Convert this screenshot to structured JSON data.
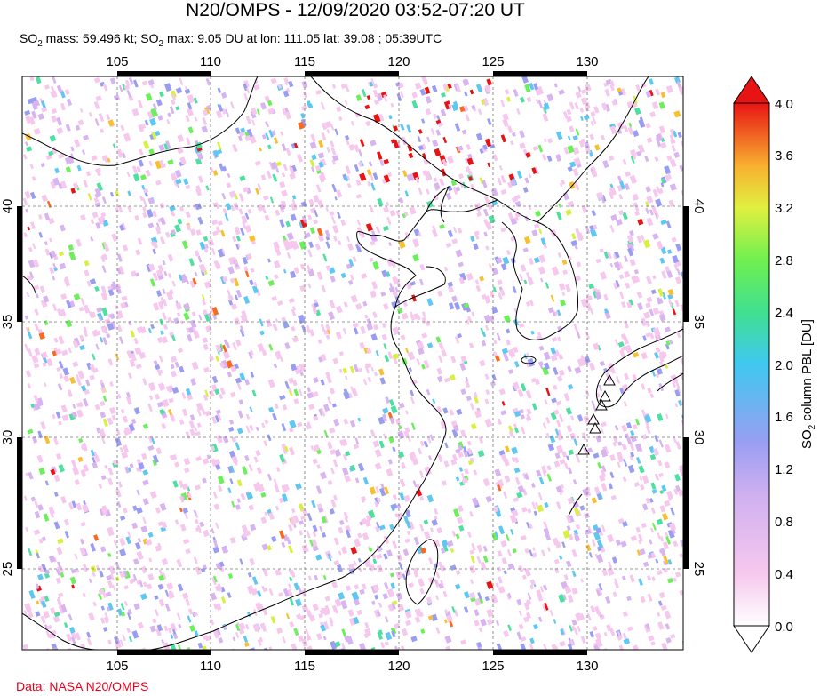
{
  "header": {
    "title": "N20/OMPS - 12/09/2020 03:52-07:20 UT",
    "subtitle_parts": [
      "SO",
      "2",
      " mass: 59.496 kt; SO",
      "2",
      " max: 9.05 DU at lon: 111.05 lat: 39.08 ; 05:39UTC"
    ]
  },
  "credit": "Data: NASA N20/OMPS",
  "map": {
    "lon_ticks": [
      "105",
      "110",
      "115",
      "120",
      "125",
      "130"
    ],
    "lat_ticks": [
      "40",
      "35",
      "30",
      "25"
    ]
  },
  "colorbar": {
    "label_parts": [
      "SO",
      "2",
      " column PBL [DU]"
    ],
    "ticks": [
      "4.0",
      "3.6",
      "3.2",
      "2.8",
      "2.4",
      "2.0",
      "1.6",
      "1.2",
      "0.8",
      "0.4",
      "0.0"
    ],
    "colors": [
      "#ffffff",
      "#f6c8ee",
      "#d8b4f0",
      "#9a9ef2",
      "#5ec8f2",
      "#4de0a0",
      "#6cf05a",
      "#d8f040",
      "#f8c030",
      "#f86a20",
      "#e81414"
    ]
  },
  "volcano_icon": "triangle-icon"
}
